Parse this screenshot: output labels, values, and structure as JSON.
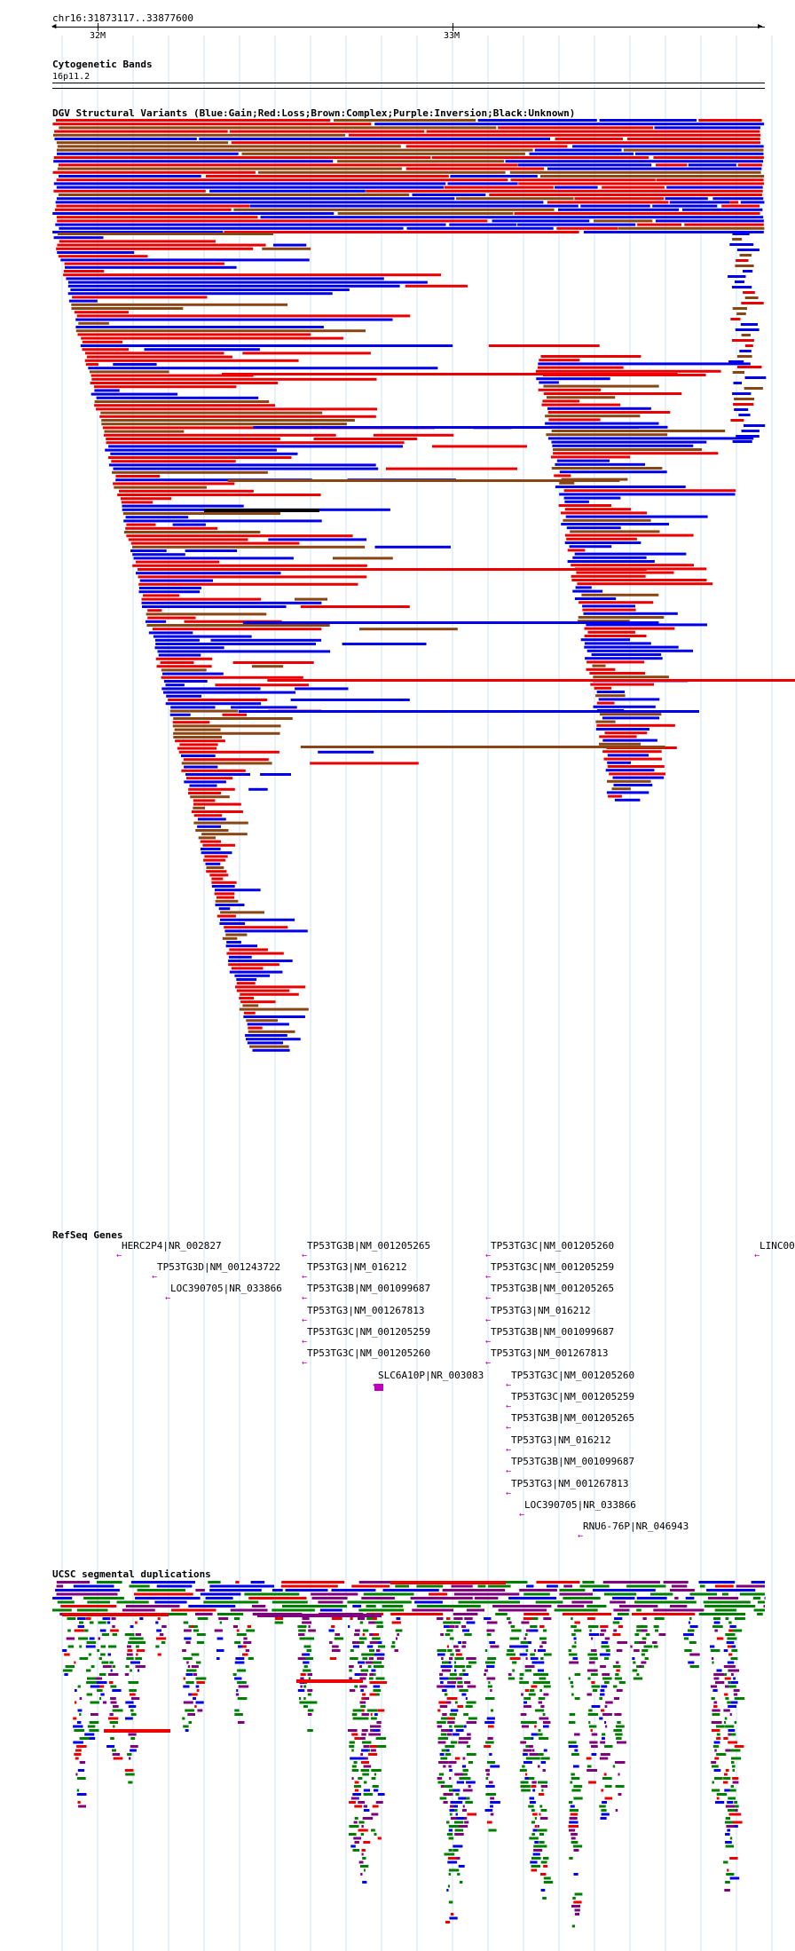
{
  "location": "chr16:31873117..33877600",
  "ruler": {
    "labels": [
      "32M",
      "33M"
    ]
  },
  "tracks": {
    "cytoband": {
      "title": "Cytogenetic Bands",
      "band": "16p11.2"
    },
    "dgv": {
      "title": "DGV Structural Variants (Blue:Gain;Red:Loss;Brown:Complex;Purple:Inversion;Black:Unknown)"
    },
    "refseq": {
      "title": "RefSeq Genes"
    },
    "segdup": {
      "title": "UCSC segmental duplications"
    }
  },
  "genes": [
    "HERC2P4|NR_002827",
    "TP53TG3D|NM_001243722",
    "LOC390705|NR_033866",
    "TP53TG3B|NM_001205265",
    "TP53TG3|NM_016212",
    "TP53TG3B|NM_001099687",
    "TP53TG3|NM_001267813",
    "TP53TG3C|NM_001205259",
    "TP53TG3C|NM_001205260",
    "SLC6A10P|NR_003083",
    "TP53TG3C|NM_001205260",
    "TP53TG3C|NM_001205259",
    "TP53TG3B|NM_001205265",
    "TP53TG3|NM_016212",
    "TP53TG3B|NM_001099687",
    "TP53TG3|NM_001267813",
    "TP53TG3C|NM_001205260",
    "TP53TG3C|NM_001205259",
    "TP53TG3B|NM_001205265",
    "TP53TG3|NM_016212",
    "TP53TG3B|NM_001099687",
    "TP53TG3|NM_001267813",
    "LOC390705|NR_033866",
    "RNU6-76P|NR_046943",
    "LINC00"
  ],
  "colors": {
    "gain": "#0000ee",
    "loss": "#ee0000",
    "complex": "#8b4513",
    "inversion": "#800080",
    "unknown": "#000000",
    "gene": "#c000c0",
    "grid": "#cfe3f5"
  }
}
